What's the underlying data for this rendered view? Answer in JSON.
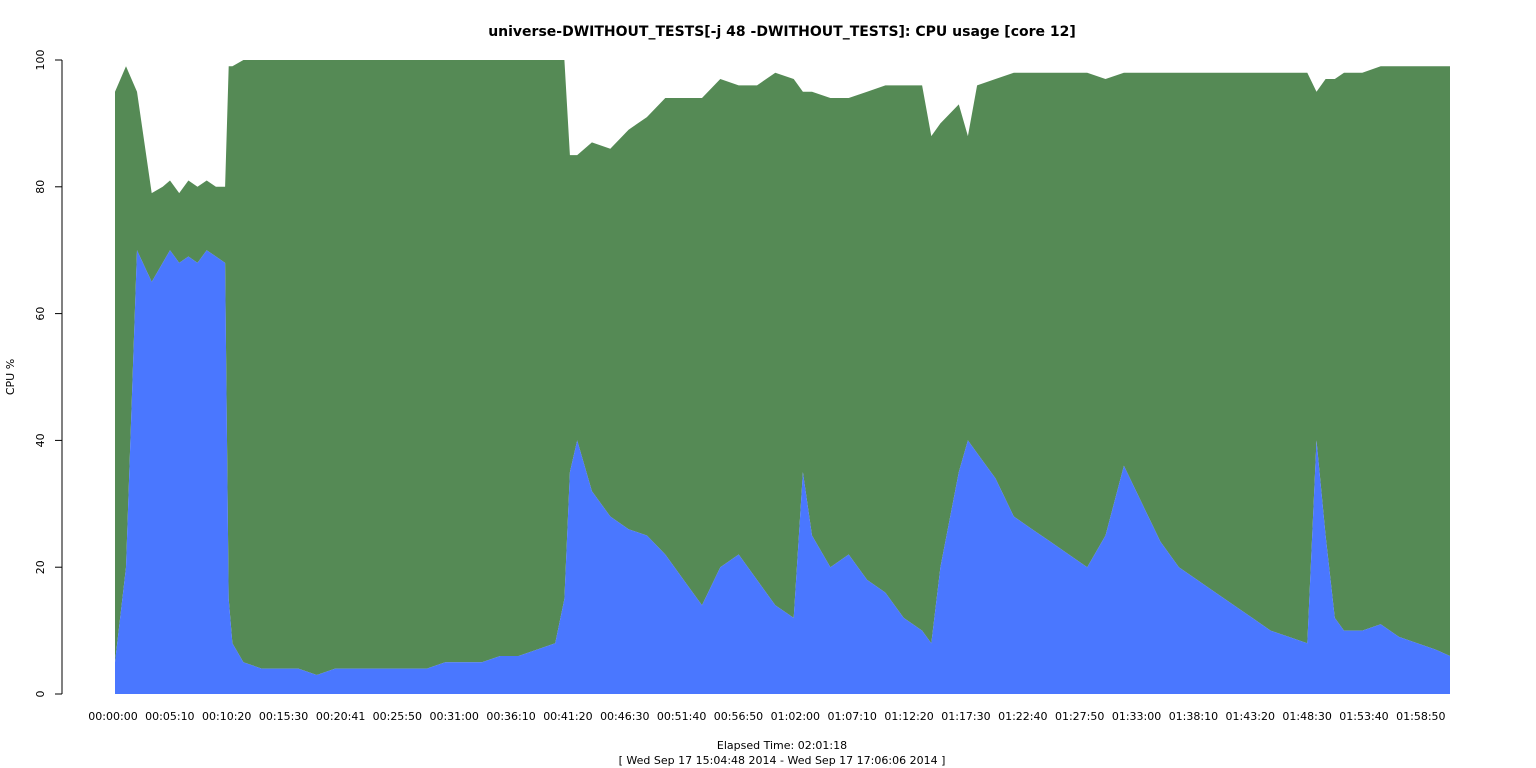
{
  "chart_data": {
    "type": "area",
    "title": "universe-DWITHOUT_TESTS[-j 48  -DWITHOUT_TESTS]: CPU usage [core 12]",
    "ylabel": "CPU %",
    "xlabel": "Elapsed Time: 02:01:18",
    "subtitle": "[ Wed Sep 17 15:04:48 2014 - Wed Sep 17 17:06:06 2014 ]",
    "ylim": [
      0,
      100
    ],
    "yticks": [
      0,
      20,
      40,
      60,
      80,
      100
    ],
    "xlim_seconds": [
      0,
      7278
    ],
    "x_tick_labels": [
      "00:00:00",
      "00:05:10",
      "00:10:20",
      "00:15:30",
      "00:20:41",
      "00:25:50",
      "00:31:00",
      "00:36:10",
      "00:41:20",
      "00:46:30",
      "00:51:40",
      "00:56:50",
      "01:02:00",
      "01:07:10",
      "01:12:20",
      "01:17:30",
      "01:22:40",
      "01:27:50",
      "01:33:00",
      "01:38:10",
      "01:43:20",
      "01:48:30",
      "01:53:40",
      "01:58:50"
    ],
    "x_ticks_seconds": [
      0,
      310,
      620,
      930,
      1241,
      1550,
      1860,
      2170,
      2480,
      2790,
      3100,
      3410,
      3720,
      4030,
      4340,
      4650,
      4960,
      5270,
      5580,
      5890,
      6200,
      6510,
      6820,
      7130
    ],
    "grid": false,
    "stacked": true,
    "series": [
      {
        "color": "#4a77ff",
        "x": [
          0,
          60,
          120,
          200,
          260,
          300,
          350,
          400,
          450,
          500,
          550,
          600,
          620,
          640,
          700,
          800,
          900,
          1000,
          1100,
          1200,
          1300,
          1400,
          1500,
          1600,
          1700,
          1800,
          1900,
          2000,
          2100,
          2200,
          2300,
          2400,
          2450,
          2480,
          2520,
          2600,
          2700,
          2800,
          2900,
          3000,
          3100,
          3200,
          3300,
          3400,
          3500,
          3600,
          3700,
          3750,
          3800,
          3900,
          4000,
          4100,
          4200,
          4300,
          4400,
          4450,
          4500,
          4600,
          4650,
          4700,
          4800,
          4900,
          5000,
          5100,
          5200,
          5300,
          5400,
          5500,
          5600,
          5700,
          5800,
          5900,
          6000,
          6100,
          6200,
          6300,
          6400,
          6500,
          6550,
          6600,
          6650,
          6700,
          6800,
          6900,
          7000,
          7100,
          7200,
          7278
        ],
        "values": [
          5,
          20,
          70,
          65,
          68,
          70,
          68,
          69,
          68,
          70,
          69,
          68,
          15,
          8,
          5,
          4,
          4,
          4,
          3,
          4,
          4,
          4,
          4,
          4,
          4,
          5,
          5,
          5,
          6,
          6,
          7,
          8,
          15,
          35,
          40,
          32,
          28,
          26,
          25,
          22,
          18,
          14,
          20,
          22,
          18,
          14,
          12,
          35,
          25,
          20,
          22,
          18,
          16,
          12,
          10,
          8,
          20,
          35,
          40,
          38,
          34,
          28,
          26,
          24,
          22,
          20,
          25,
          36,
          30,
          24,
          20,
          18,
          16,
          14,
          12,
          10,
          9,
          8,
          40,
          25,
          12,
          10,
          10,
          11,
          9,
          8,
          7,
          6
        ]
      },
      {
        "color": "#558a55",
        "x": [
          0,
          60,
          120,
          200,
          260,
          300,
          350,
          400,
          450,
          500,
          550,
          600,
          620,
          640,
          700,
          800,
          900,
          1000,
          1100,
          1200,
          1300,
          1400,
          1500,
          1600,
          1700,
          1800,
          1900,
          2000,
          2100,
          2200,
          2300,
          2400,
          2450,
          2480,
          2520,
          2600,
          2700,
          2800,
          2900,
          3000,
          3100,
          3200,
          3300,
          3400,
          3500,
          3600,
          3700,
          3750,
          3800,
          3900,
          4000,
          4100,
          4200,
          4300,
          4400,
          4450,
          4500,
          4600,
          4650,
          4700,
          4800,
          4900,
          5000,
          5100,
          5200,
          5300,
          5400,
          5500,
          5600,
          5700,
          5800,
          5900,
          6000,
          6100,
          6200,
          6300,
          6400,
          6500,
          6550,
          6600,
          6650,
          6700,
          6800,
          6900,
          7000,
          7100,
          7200,
          7278
        ],
        "values": [
          90,
          79,
          25,
          14,
          12,
          11,
          11,
          12,
          12,
          11,
          11,
          12,
          84,
          91,
          95,
          96,
          96,
          96,
          97,
          96,
          96,
          96,
          96,
          96,
          96,
          95,
          95,
          95,
          94,
          94,
          93,
          92,
          85,
          50,
          45,
          55,
          58,
          63,
          66,
          72,
          76,
          80,
          77,
          74,
          78,
          84,
          85,
          60,
          70,
          74,
          72,
          77,
          80,
          84,
          86,
          80,
          70,
          58,
          48,
          58,
          63,
          70,
          72,
          74,
          76,
          78,
          72,
          62,
          68,
          74,
          78,
          80,
          82,
          84,
          86,
          88,
          89,
          90,
          55,
          72,
          85,
          88,
          88,
          88,
          90,
          91,
          92,
          93
        ]
      }
    ]
  }
}
